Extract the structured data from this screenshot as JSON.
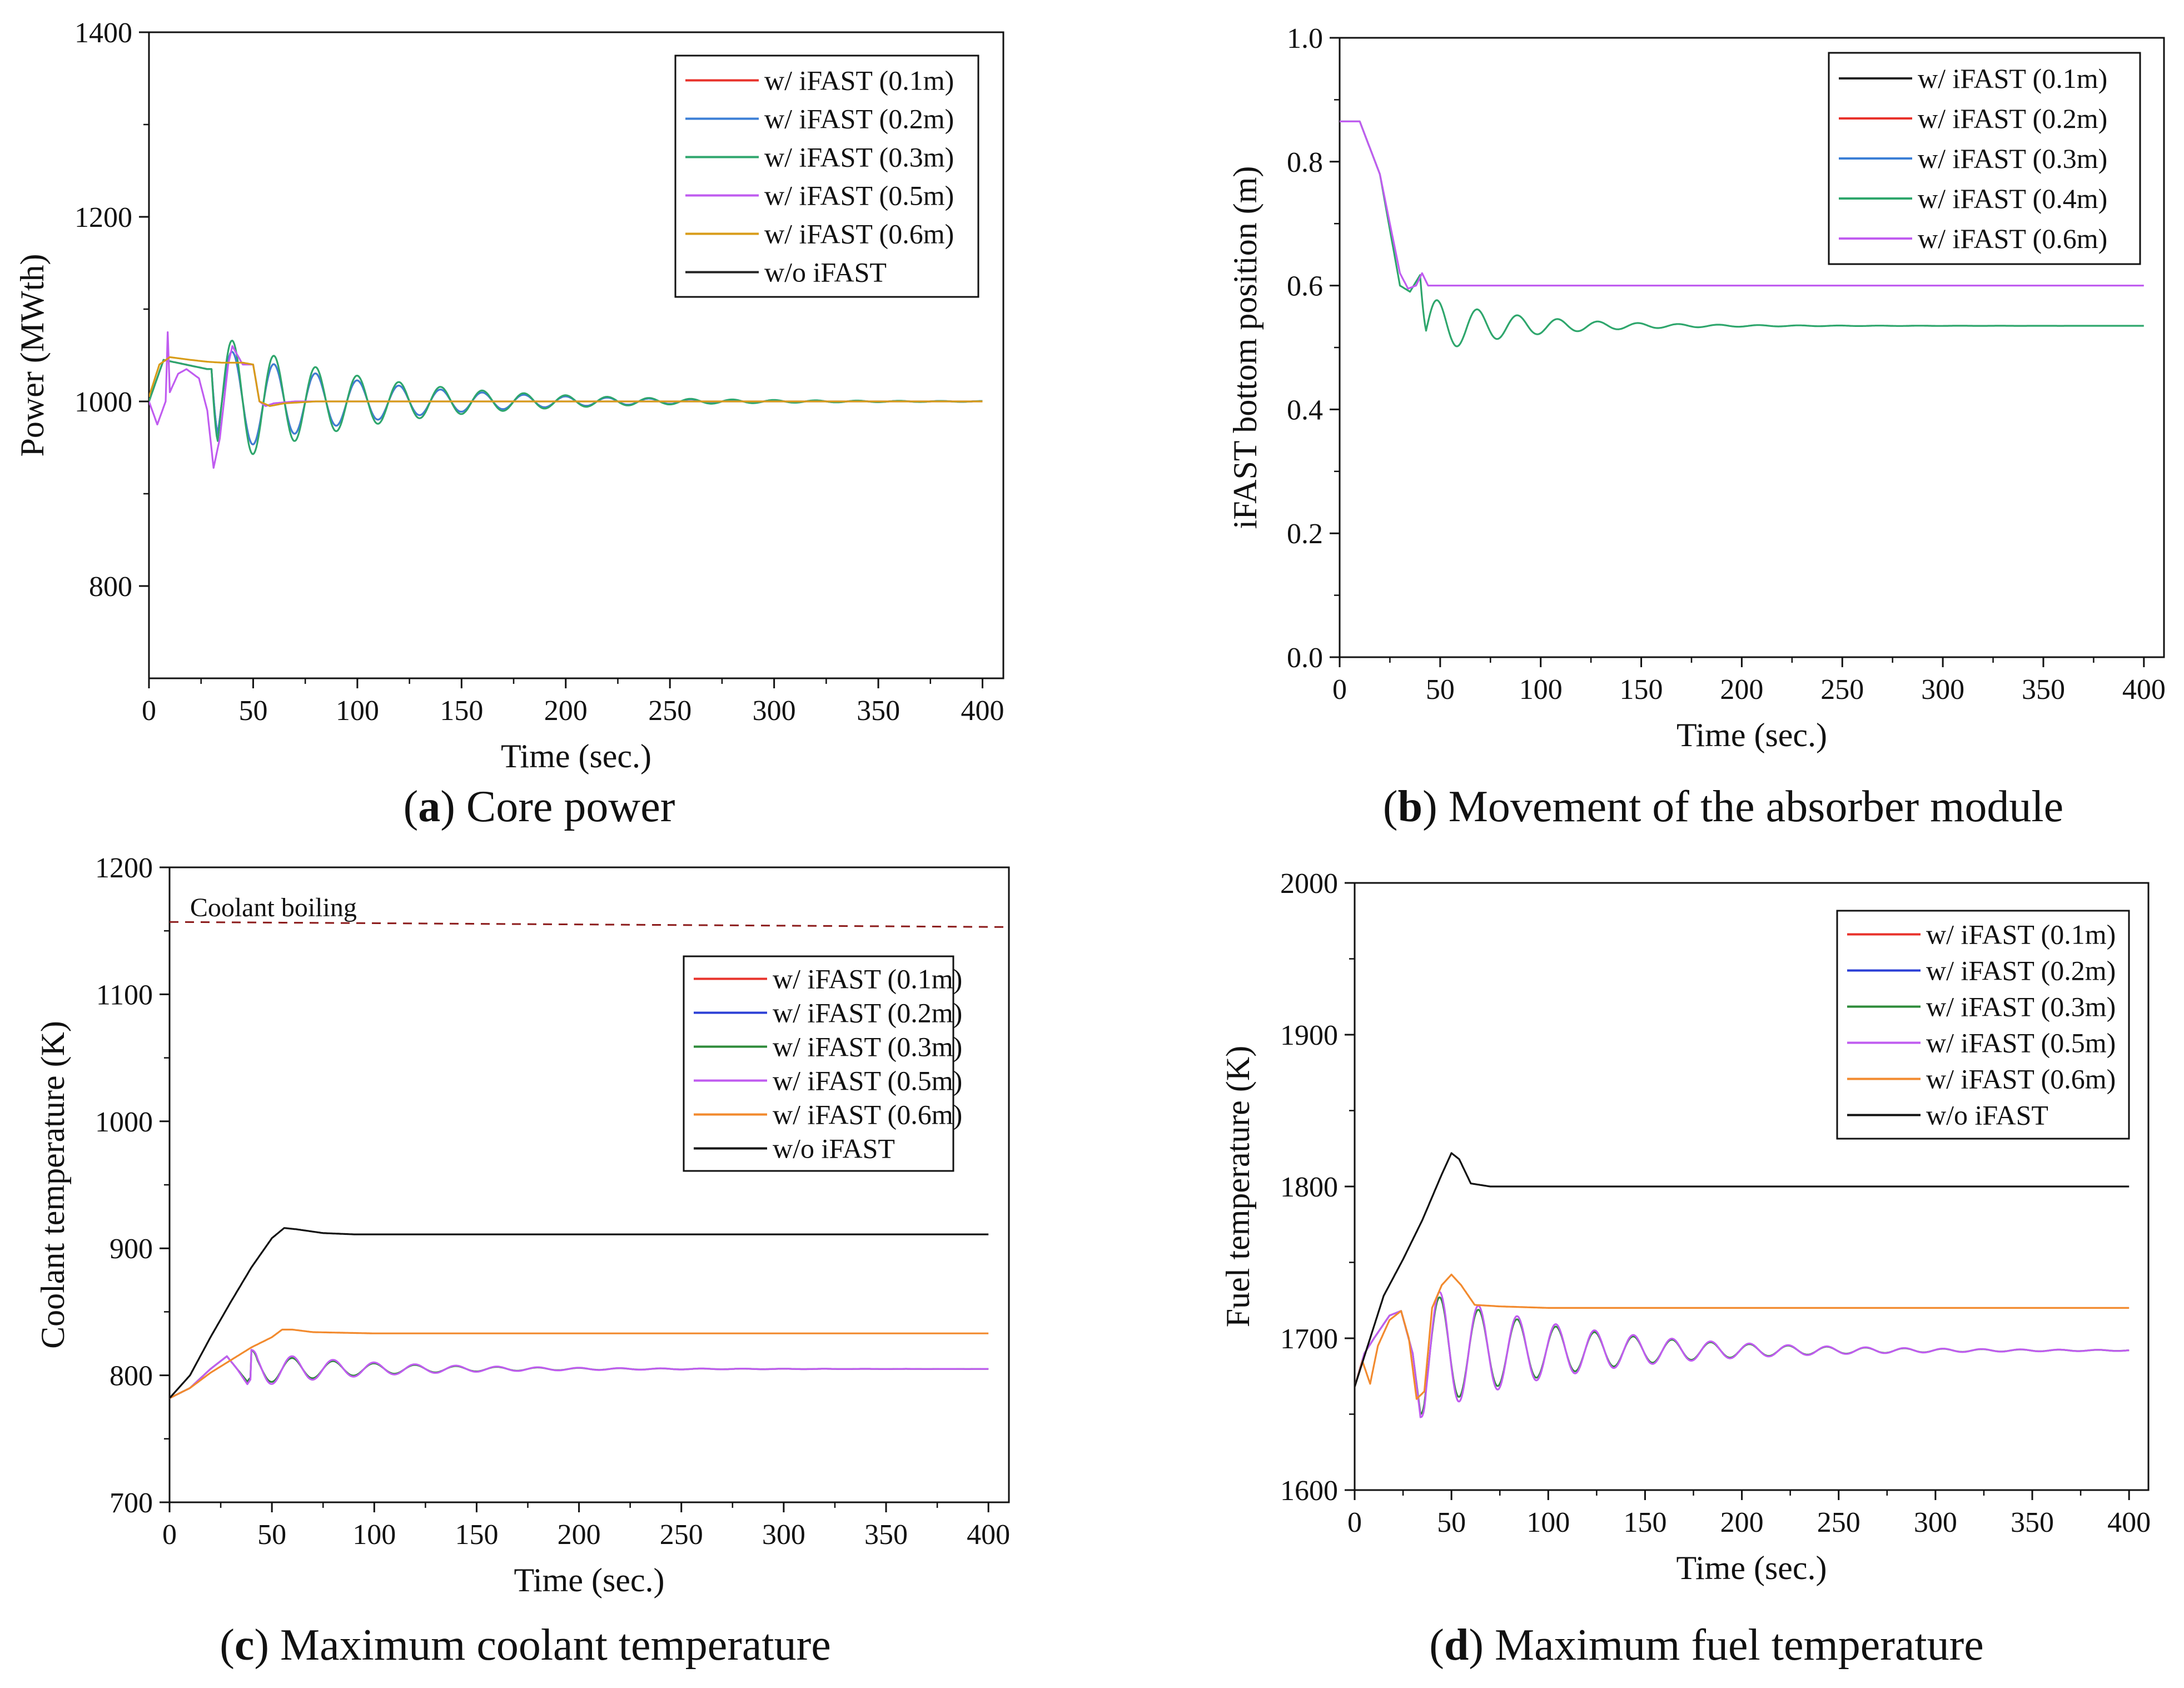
{
  "figure": {
    "captions": [
      {
        "letter": "a",
        "text": " Core power"
      },
      {
        "letter": "b",
        "text": " Movement of the absorber module"
      },
      {
        "letter": "c",
        "text": " Maximum coolant temperature"
      },
      {
        "letter": "d",
        "text": " Maximum fuel temperature"
      }
    ]
  },
  "chart_data": [
    {
      "id": "a",
      "type": "line",
      "title": "(a) Core power",
      "xlabel": "Time (sec.)",
      "ylabel": "Power (MWth)",
      "xlim": [
        0,
        410
      ],
      "ylim": [
        700,
        1400
      ],
      "xticks": [
        0,
        50,
        100,
        150,
        200,
        250,
        300,
        350,
        400
      ],
      "yticks": [
        800,
        1000,
        1200,
        1400
      ],
      "legend_position": "top-right",
      "series": [
        {
          "name": "w/ iFAST (0.1m)",
          "color": "#e8322b",
          "model": "osc",
          "params": {
            "y0": 1000,
            "amp": 62,
            "t0": 30,
            "period": 20,
            "tau": 70,
            "rampTo": 1045,
            "rampT": 7,
            "phase": 3.14
          }
        },
        {
          "name": "w/ iFAST (0.2m)",
          "color": "#3b7fd6",
          "model": "osc",
          "params": {
            "y0": 1000,
            "amp": 62,
            "t0": 30,
            "period": 20,
            "tau": 70,
            "rampTo": 1045,
            "rampT": 7,
            "phase": 3.14
          }
        },
        {
          "name": "w/ iFAST (0.3m)",
          "color": "#2ea66c",
          "model": "osc",
          "params": {
            "y0": 1000,
            "amp": 76,
            "t0": 30,
            "period": 20,
            "tau": 70,
            "rampTo": 1045,
            "rampT": 7,
            "phase": 3.14
          }
        },
        {
          "name": "w/ iFAST (0.5m)",
          "color": "#c05cf0",
          "model": "points",
          "points": [
            [
              0,
              1000
            ],
            [
              4,
              975
            ],
            [
              8,
              1000
            ],
            [
              9,
              1075
            ],
            [
              10,
              1010
            ],
            [
              14,
              1030
            ],
            [
              18,
              1035
            ],
            [
              24,
              1025
            ],
            [
              28,
              990
            ],
            [
              31,
              928
            ],
            [
              34,
              960
            ],
            [
              38,
              1040
            ],
            [
              40,
              1060
            ],
            [
              45,
              1040
            ],
            [
              50,
              1040
            ],
            [
              53,
              1000
            ],
            [
              56,
              995
            ],
            [
              60,
              998
            ],
            [
              70,
              1000
            ],
            [
              400,
              1000
            ]
          ]
        },
        {
          "name": "w/ iFAST (0.6m)",
          "color": "#d89c18",
          "model": "points",
          "points": [
            [
              0,
              1005
            ],
            [
              5,
              1040
            ],
            [
              10,
              1048
            ],
            [
              20,
              1045
            ],
            [
              28,
              1043
            ],
            [
              35,
              1042
            ],
            [
              45,
              1042
            ],
            [
              50,
              1040
            ],
            [
              53,
              1000
            ],
            [
              58,
              995
            ],
            [
              65,
              998
            ],
            [
              80,
              1000
            ],
            [
              400,
              1000
            ]
          ]
        },
        {
          "name": "w/o iFAST",
          "color": "#222222",
          "model": "hidden"
        }
      ]
    },
    {
      "id": "b",
      "type": "line",
      "title": "(b) Movement of the absorber module",
      "xlabel": "Time (sec.)",
      "ylabel": "iFAST bottom position (m)",
      "xlim": [
        0,
        410
      ],
      "ylim": [
        0.0,
        1.0
      ],
      "xticks": [
        0,
        50,
        100,
        150,
        200,
        250,
        300,
        350,
        400
      ],
      "yticks": [
        0.0,
        0.2,
        0.4,
        0.6,
        0.8,
        1.0
      ],
      "ytick_format": 1,
      "legend_position": "top-right",
      "series": [
        {
          "name": "w/ iFAST (0.1m)",
          "color": "#222222",
          "model": "hidden"
        },
        {
          "name": "w/ iFAST (0.2m)",
          "color": "#e8322b",
          "model": "hidden"
        },
        {
          "name": "w/ iFAST (0.3m)",
          "color": "#3b7fd6",
          "model": "hidden"
        },
        {
          "name": "w/ iFAST (0.4m)",
          "color": "#2ea66c",
          "model": "osc",
          "params": {
            "y0": 0.535,
            "amp": 0.05,
            "t0": 40,
            "period": 20,
            "tau": 45,
            "phase": 3.6,
            "pre": [
              [
                0,
                0.865
              ],
              [
                10,
                0.865
              ],
              [
                20,
                0.78
              ],
              [
                30,
                0.6
              ],
              [
                35,
                0.59
              ],
              [
                40,
                0.617
              ]
            ]
          }
        },
        {
          "name": "w/ iFAST (0.6m)",
          "color": "#c05cf0",
          "model": "points",
          "points": [
            [
              0,
              0.865
            ],
            [
              10,
              0.865
            ],
            [
              20,
              0.78
            ],
            [
              30,
              0.62
            ],
            [
              34,
              0.595
            ],
            [
              38,
              0.6
            ],
            [
              41,
              0.62
            ],
            [
              44,
              0.6
            ],
            [
              400,
              0.6
            ]
          ]
        }
      ]
    },
    {
      "id": "c",
      "type": "line",
      "title": "(c) Maximum coolant temperature",
      "xlabel": "Time (sec.)",
      "ylabel": "Coolant temperature (K)",
      "xlim": [
        0,
        410
      ],
      "ylim": [
        700,
        1200
      ],
      "xticks": [
        0,
        50,
        100,
        150,
        200,
        250,
        300,
        350,
        400
      ],
      "yticks": [
        700,
        800,
        900,
        1000,
        1100,
        1200
      ],
      "legend_position": "top-right",
      "annotations": [
        {
          "text": "Coolant boiling",
          "x": 10,
          "y": 1158,
          "line": [
            1157,
            1153
          ],
          "color": "#8b1a1a"
        }
      ],
      "series": [
        {
          "name": "w/ iFAST (0.1m)",
          "color": "#e8322b",
          "model": "hidden"
        },
        {
          "name": "w/ iFAST (0.2m)",
          "color": "#2b3fd6",
          "model": "hidden"
        },
        {
          "name": "w/ iFAST (0.3m)",
          "color": "#2e8b3a",
          "model": "osc",
          "params": {
            "y0": 805,
            "amp": 12,
            "t0": 40,
            "period": 20,
            "tau": 60,
            "phase": 0,
            "pre": [
              [
                0,
                782
              ],
              [
                10,
                790
              ],
              [
                20,
                805
              ],
              [
                28,
                815
              ],
              [
                33,
                805
              ],
              [
                38,
                795
              ],
              [
                45,
                810
              ],
              [
                52,
                820
              ]
            ]
          }
        },
        {
          "name": "w/ iFAST (0.5m)",
          "color": "#c05cf0",
          "model": "osc",
          "params": {
            "y0": 805,
            "amp": 14,
            "t0": 40,
            "period": 20,
            "tau": 60,
            "phase": 0,
            "pre": [
              [
                0,
                782
              ],
              [
                10,
                790
              ],
              [
                20,
                805
              ],
              [
                28,
                815
              ],
              [
                33,
                805
              ],
              [
                38,
                793
              ],
              [
                45,
                810
              ],
              [
                52,
                820
              ]
            ]
          }
        },
        {
          "name": "w/ iFAST (0.6m)",
          "color": "#f28a2e",
          "model": "points",
          "points": [
            [
              0,
              782
            ],
            [
              10,
              790
            ],
            [
              20,
              802
            ],
            [
              30,
              812
            ],
            [
              40,
              822
            ],
            [
              50,
              830
            ],
            [
              55,
              836
            ],
            [
              60,
              836
            ],
            [
              70,
              834
            ],
            [
              100,
              833
            ],
            [
              400,
              833
            ]
          ]
        },
        {
          "name": "w/o iFAST",
          "color": "#111111",
          "model": "points",
          "points": [
            [
              0,
              782
            ],
            [
              10,
              800
            ],
            [
              20,
              830
            ],
            [
              30,
              858
            ],
            [
              40,
              885
            ],
            [
              50,
              908
            ],
            [
              56,
              916
            ],
            [
              62,
              915
            ],
            [
              75,
              912
            ],
            [
              90,
              911
            ],
            [
              400,
              911
            ]
          ]
        }
      ]
    },
    {
      "id": "d",
      "type": "line",
      "title": "(d) Maximum fuel temperature",
      "xlabel": "Time (sec.)",
      "ylabel": "Fuel temperature (K)",
      "xlim": [
        0,
        410
      ],
      "ylim": [
        1600,
        2000
      ],
      "xticks": [
        0,
        50,
        100,
        150,
        200,
        250,
        300,
        350,
        400
      ],
      "yticks": [
        1600,
        1700,
        1800,
        1900,
        2000
      ],
      "legend_position": "top-right",
      "series": [
        {
          "name": "w/ iFAST (0.1m)",
          "color": "#e8322b",
          "model": "hidden"
        },
        {
          "name": "w/ iFAST (0.2m)",
          "color": "#2b3fd6",
          "model": "hidden"
        },
        {
          "name": "w/ iFAST (0.3m)",
          "color": "#2e8b3a",
          "model": "osc",
          "params": {
            "y0": 1692,
            "amp": 40,
            "t0": 34,
            "period": 20,
            "tau": 75,
            "phase": 3.14,
            "pre": [
              [
                0,
                1668
              ],
              [
                5,
                1690
              ],
              [
                10,
                1700
              ],
              [
                18,
                1715
              ],
              [
                24,
                1718
              ],
              [
                30,
                1690
              ],
              [
                34,
                1650
              ]
            ]
          }
        },
        {
          "name": "w/ iFAST (0.5m)",
          "color": "#c05cf0",
          "model": "osc",
          "params": {
            "y0": 1692,
            "amp": 44,
            "t0": 34,
            "period": 20,
            "tau": 75,
            "phase": 3.14,
            "pre": [
              [
                0,
                1668
              ],
              [
                5,
                1690
              ],
              [
                10,
                1700
              ],
              [
                18,
                1715
              ],
              [
                24,
                1718
              ],
              [
                30,
                1690
              ],
              [
                34,
                1648
              ]
            ]
          }
        },
        {
          "name": "w/ iFAST (0.6m)",
          "color": "#f28a2e",
          "model": "points",
          "points": [
            [
              0,
              1668
            ],
            [
              4,
              1685
            ],
            [
              8,
              1670
            ],
            [
              12,
              1695
            ],
            [
              18,
              1712
            ],
            [
              24,
              1718
            ],
            [
              28,
              1700
            ],
            [
              32,
              1660
            ],
            [
              36,
              1665
            ],
            [
              40,
              1720
            ],
            [
              45,
              1735
            ],
            [
              50,
              1742
            ],
            [
              55,
              1735
            ],
            [
              62,
              1722
            ],
            [
              75,
              1721
            ],
            [
              100,
              1720
            ],
            [
              400,
              1720
            ]
          ]
        },
        {
          "name": "w/o iFAST",
          "color": "#111111",
          "model": "points",
          "points": [
            [
              0,
              1668
            ],
            [
              8,
              1700
            ],
            [
              15,
              1728
            ],
            [
              25,
              1752
            ],
            [
              35,
              1778
            ],
            [
              45,
              1808
            ],
            [
              50,
              1822
            ],
            [
              54,
              1818
            ],
            [
              60,
              1802
            ],
            [
              70,
              1800
            ],
            [
              100,
              1800
            ],
            [
              400,
              1800
            ]
          ]
        }
      ]
    }
  ]
}
